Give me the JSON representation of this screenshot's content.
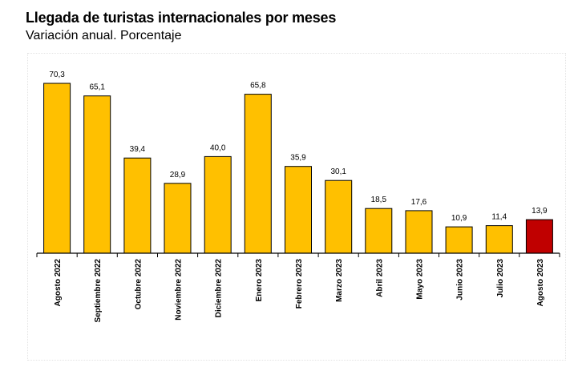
{
  "chart_data": {
    "type": "bar",
    "title": "Llegada de turistas internacionales por meses",
    "subtitle": "Variación anual. Porcentaje",
    "categories": [
      "Agosto 2022",
      "Septiembre 2022",
      "Octubre 2022",
      "Noviembre 2022",
      "Diciembre 2022",
      "Enero 2023",
      "Febrero 2023",
      "Marzo 2023",
      "Abril 2023",
      "Mayo 2023",
      "Junio 2023",
      "Julio 2023",
      "Agosto 2023"
    ],
    "values": [
      70.3,
      65.1,
      39.4,
      28.9,
      40.0,
      65.8,
      35.9,
      30.1,
      18.5,
      17.6,
      10.9,
      11.4,
      13.9
    ],
    "value_labels": [
      "70,3",
      "65,1",
      "39,4",
      "28,9",
      "40,0",
      "65,8",
      "35,9",
      "30,1",
      "18,5",
      "17,6",
      "10,9",
      "11,4",
      "13,9"
    ],
    "highlight_index": 12,
    "colors": {
      "bar": "#FFC000",
      "highlight": "#C00000",
      "outline": "#000000"
    },
    "ylim": [
      0,
      72
    ],
    "grid": false,
    "legend": "none"
  }
}
